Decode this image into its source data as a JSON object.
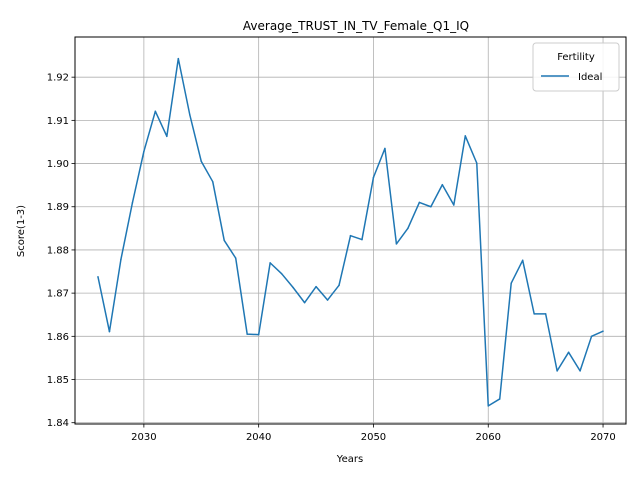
{
  "chart_data": {
    "type": "line",
    "title": "Average_TRUST_IN_TV_Female_Q1_IQ",
    "xlabel": "Years",
    "ylabel": "Score(1-3)",
    "xlim": [
      2024,
      2072
    ],
    "ylim": [
      1.8397,
      1.9293
    ],
    "x_ticks": [
      2030,
      2040,
      2050,
      2060,
      2070
    ],
    "y_ticks": [
      1.84,
      1.85,
      1.86,
      1.87,
      1.88,
      1.89,
      1.9,
      1.91,
      1.92
    ],
    "y_tick_labels": [
      "1.84",
      "1.85",
      "1.86",
      "1.87",
      "1.88",
      "1.89",
      "1.90",
      "1.91",
      "1.92"
    ],
    "grid": true,
    "legend": {
      "title": "Fertility",
      "placement": "top-right"
    },
    "series": [
      {
        "name": "Ideal",
        "color": "#1f77b4",
        "x": [
          2026,
          2027,
          2028,
          2029,
          2030,
          2031,
          2032,
          2033,
          2034,
          2035,
          2036,
          2037,
          2038,
          2039,
          2040,
          2041,
          2042,
          2043,
          2044,
          2045,
          2046,
          2047,
          2048,
          2049,
          2050,
          2051,
          2052,
          2053,
          2054,
          2055,
          2056,
          2057,
          2058,
          2059,
          2060,
          2061,
          2062,
          2063,
          2064,
          2065,
          2066,
          2067,
          2068,
          2069,
          2070
        ],
        "y": [
          1.8738,
          1.8611,
          1.8778,
          1.8909,
          1.9028,
          1.9121,
          1.9063,
          1.9243,
          1.9113,
          1.9005,
          1.8958,
          1.8822,
          1.8781,
          1.8605,
          1.8604,
          1.877,
          1.8745,
          1.8713,
          1.8678,
          1.8715,
          1.8684,
          1.8718,
          1.8833,
          1.8824,
          1.8968,
          1.9035,
          1.8814,
          1.885,
          1.891,
          1.89,
          1.8951,
          1.8904,
          1.9064,
          1.9001,
          1.8439,
          1.8455,
          1.8723,
          1.8776,
          1.8652,
          1.8652,
          1.852,
          1.8563,
          1.852,
          1.86,
          1.8612
        ]
      }
    ]
  }
}
